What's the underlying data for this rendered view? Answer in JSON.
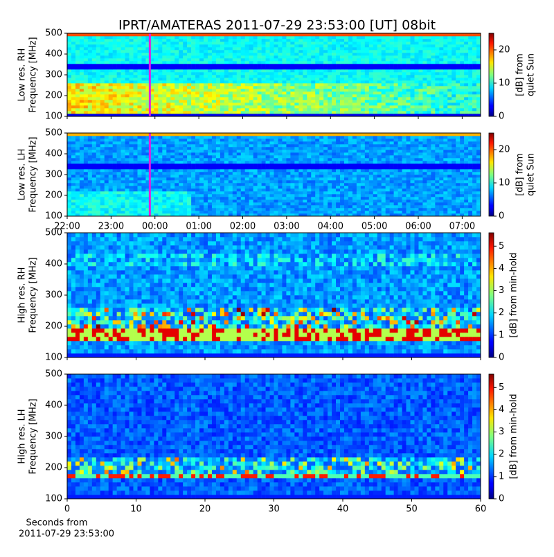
{
  "title": "IPRT/AMATERAS 2011-07-29 23:53:00 [UT]   08bit",
  "chart_data": [
    {
      "type": "heatmap",
      "ylabel": [
        "Low res. RH",
        "Frequency [MHz]"
      ],
      "ylim": [
        100,
        500
      ],
      "yticks": [
        100,
        200,
        300,
        400,
        500
      ],
      "xlim": [
        22,
        31.42
      ],
      "xticks": [
        22,
        23,
        24,
        25,
        26,
        27,
        28,
        29,
        30,
        31
      ],
      "xtick_labels": false,
      "marker_x": 23.8833,
      "marker_color": "#e020e0",
      "colormap": "jet",
      "clim": [
        0,
        25
      ],
      "cticks": [
        0,
        10,
        20
      ],
      "colorbar_label": [
        "[dB] from",
        "quiet Sun"
      ]
    },
    {
      "type": "heatmap",
      "ylabel": [
        "Low res. LH",
        "Frequency [MHz]"
      ],
      "ylim": [
        100,
        500
      ],
      "yticks": [
        100,
        200,
        300,
        400,
        500
      ],
      "xlim": [
        22,
        31.42
      ],
      "xticks": [
        {
          "value": 22,
          "label": "22:00"
        },
        {
          "value": 23,
          "label": "23:00"
        },
        {
          "value": 24,
          "label": "00:00"
        },
        {
          "value": 25,
          "label": "01:00"
        },
        {
          "value": 26,
          "label": "02:00"
        },
        {
          "value": 27,
          "label": "03:00"
        },
        {
          "value": 28,
          "label": "04:00"
        },
        {
          "value": 29,
          "label": "05:00"
        },
        {
          "value": 30,
          "label": "06:00"
        },
        {
          "value": 31,
          "label": "07:00"
        }
      ],
      "xtick_labels": true,
      "marker_x": 23.8833,
      "marker_color": "#e020e0",
      "colormap": "jet",
      "clim": [
        0,
        25
      ],
      "cticks": [
        0,
        10,
        20
      ],
      "colorbar_label": [
        "[dB] from",
        "quiet Sun"
      ]
    },
    {
      "type": "heatmap",
      "ylabel": [
        "High res. RH",
        "Frequency [MHz]"
      ],
      "ylim": [
        100,
        500
      ],
      "yticks": [
        100,
        200,
        300,
        400,
        500
      ],
      "xlim": [
        0,
        60
      ],
      "xticks": [
        0,
        10,
        20,
        30,
        40,
        50,
        60
      ],
      "xtick_labels": false,
      "colormap": "jet",
      "clim": [
        0,
        5.6
      ],
      "cticks": [
        0,
        1,
        2,
        3,
        4,
        5
      ],
      "colorbar_label": [
        "[dB] from min-hold"
      ]
    },
    {
      "type": "heatmap",
      "ylabel": [
        "High res. LH",
        "Frequency [MHz]"
      ],
      "ylim": [
        100,
        500
      ],
      "yticks": [
        100,
        200,
        300,
        400,
        500
      ],
      "xlim": [
        0,
        60
      ],
      "xticks": [
        0,
        10,
        20,
        30,
        40,
        50,
        60
      ],
      "xtick_labels": true,
      "colormap": "jet",
      "clim": [
        0,
        5.6
      ],
      "cticks": [
        0,
        1,
        2,
        3,
        4,
        5
      ],
      "colorbar_label": [
        "[dB] from min-hold"
      ],
      "xlabel": [
        "Seconds from",
        "2011-07-29 23:53:00"
      ]
    }
  ]
}
